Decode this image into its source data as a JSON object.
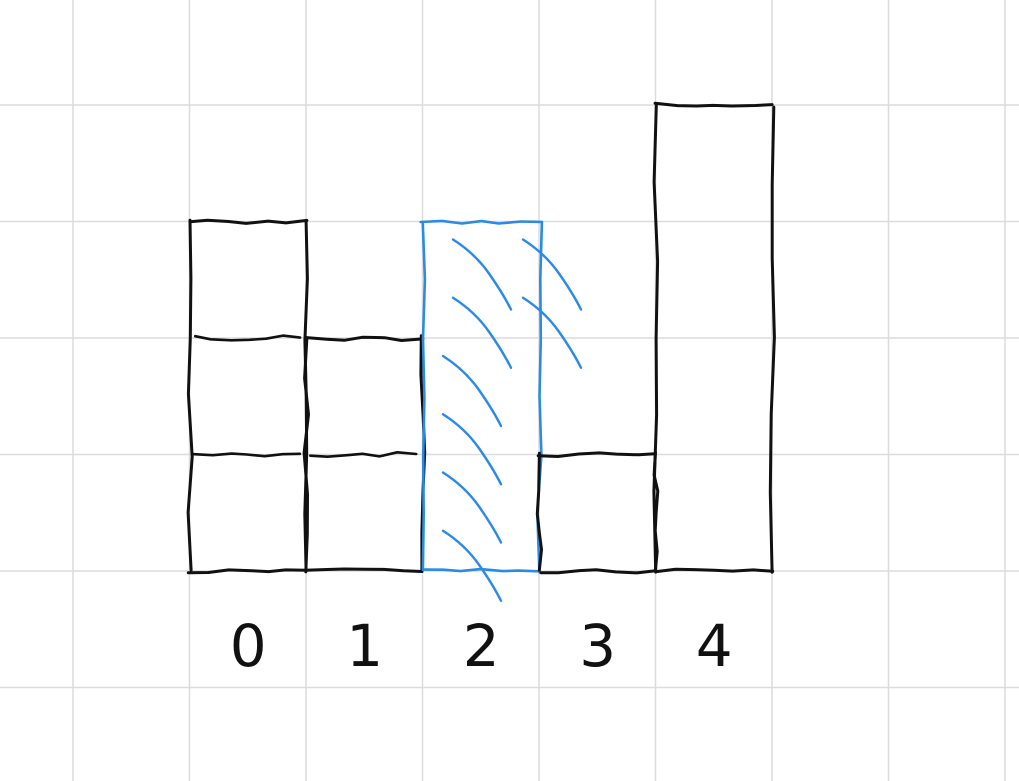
{
  "chart_data": {
    "type": "bar",
    "categories": [
      "0",
      "1",
      "2",
      "3",
      "4"
    ],
    "values": [
      3,
      2,
      3,
      1,
      4
    ],
    "highlighted_category": "2",
    "ylim": [
      0,
      4
    ],
    "grid": true,
    "colors": {
      "bar": "#111111",
      "highlight": "#2b8ae6",
      "grid": "#dcdcdc",
      "background": "#ffffff"
    }
  }
}
